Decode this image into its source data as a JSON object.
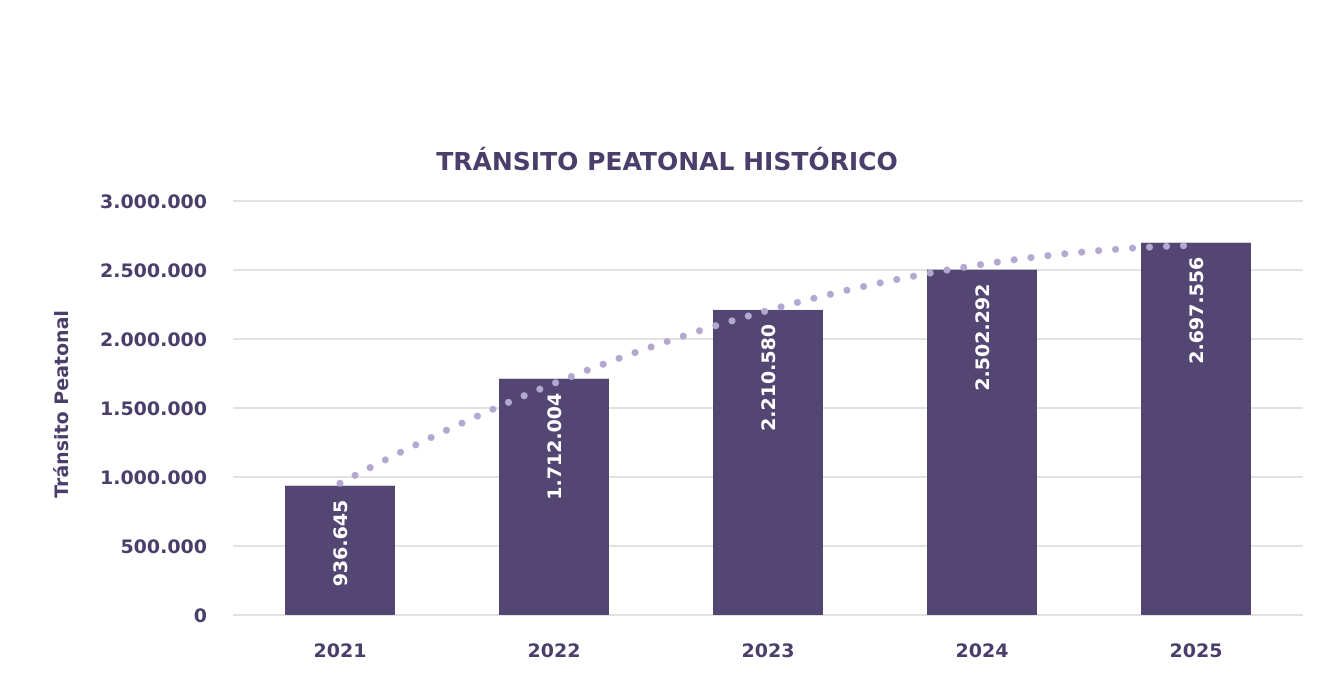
{
  "chart_data": {
    "type": "bar",
    "title": "TRÁNSITO PEATONAL HISTÓRICO",
    "xlabel": "",
    "ylabel": "Tránsito Peatonal",
    "categories": [
      "2021",
      "2022",
      "2023",
      "2024",
      "2025"
    ],
    "series": [
      {
        "values": [
          936645,
          1712004,
          2210580,
          2502292,
          2697556
        ],
        "data_labels": [
          "936.645",
          "1.712.004",
          "2.210.580",
          "2.502.292",
          "2.697.556"
        ],
        "color": "#534673"
      }
    ],
    "trendline": {
      "type": "polynomial",
      "style": "dotted",
      "color": "#b3a8cf"
    },
    "ylim": [
      0,
      3000000
    ],
    "yticks": [
      0,
      500000,
      1000000,
      1500000,
      2000000,
      2500000,
      3000000
    ],
    "ytick_labels": [
      "0",
      "500.000",
      "1.000.000",
      "1.500.000",
      "2.000.000",
      "2.500.000",
      "3.000.000"
    ],
    "grid": true,
    "legend": "none"
  }
}
